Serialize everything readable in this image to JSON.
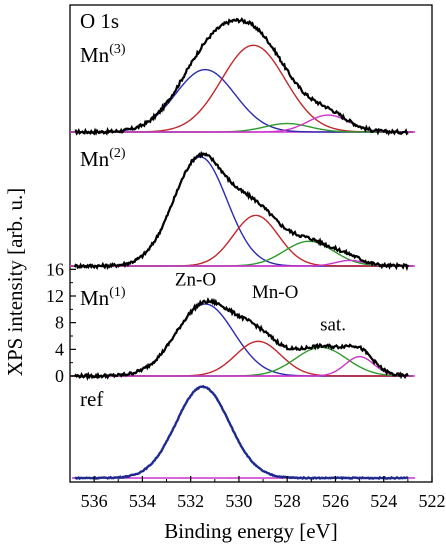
{
  "chart_data": {
    "type": "line",
    "xlabel": "Binding energy [eV]",
    "ylabel": "XPS intensity [arb. u.]",
    "xlim": [
      537,
      522
    ],
    "x_ticks": [
      536,
      534,
      532,
      530,
      528,
      526,
      524,
      522
    ],
    "grid": false,
    "element_label": "O 1s",
    "colors": {
      "data": "#000000",
      "zn_o": "#2b2bb0",
      "mn_o": "#c0282c",
      "sat_1": "#2e9a2e",
      "sat_2": "#cc33cc",
      "baseline": "#cc33cc",
      "ref": "#1f2a8f"
    },
    "panels": [
      {
        "label_main": "Mn",
        "label_sup": "(3)",
        "components": [
          {
            "center": 531.4,
            "amplitude": 0.59,
            "fwhm": 2.9,
            "color": "zn_o"
          },
          {
            "center": 529.4,
            "amplitude": 0.82,
            "fwhm": 3.1,
            "color": "mn_o"
          },
          {
            "center": 528.0,
            "amplitude": 0.08,
            "fwhm": 2.2,
            "color": "sat_1"
          },
          {
            "center": 526.3,
            "amplitude": 0.16,
            "fwhm": 2.0,
            "color": "sat_2"
          }
        ]
      },
      {
        "label_main": "Mn",
        "label_sup": "(2)",
        "components": [
          {
            "center": 531.6,
            "amplitude": 0.97,
            "fwhm": 2.6,
            "color": "zn_o"
          },
          {
            "center": 529.3,
            "amplitude": 0.45,
            "fwhm": 2.2,
            "color": "mn_o"
          },
          {
            "center": 527.1,
            "amplitude": 0.22,
            "fwhm": 2.4,
            "color": "sat_1"
          },
          {
            "center": 525.4,
            "amplitude": 0.05,
            "fwhm": 1.4,
            "color": "sat_2"
          }
        ]
      },
      {
        "label_main": "Mn",
        "label_sup": "(1)",
        "y_ticks": [
          0,
          4,
          8,
          12,
          16
        ],
        "ylim": [
          0,
          16.5
        ],
        "peak_labels": [
          {
            "text": "Zn-O",
            "x": 531.8,
            "y": 13.6
          },
          {
            "text": "Mn-O",
            "x": 528.5,
            "y": 11.7
          },
          {
            "text": "sat.",
            "x": 526.1,
            "y": 6.8
          }
        ],
        "components": [
          {
            "center": 531.4,
            "amplitude": 10.8,
            "fwhm": 2.8,
            "color": "zn_o"
          },
          {
            "center": 529.2,
            "amplitude": 5.2,
            "fwhm": 2.2,
            "color": "mn_o"
          },
          {
            "center": 526.6,
            "amplitude": 4.3,
            "fwhm": 2.5,
            "color": "sat_1"
          },
          {
            "center": 525.0,
            "amplitude": 2.9,
            "fwhm": 1.4,
            "color": "sat_2"
          }
        ]
      },
      {
        "label_main": "ref",
        "label_sup": "",
        "components": [
          {
            "center": 531.5,
            "amplitude": 1.0,
            "fwhm": 2.6,
            "color": "ref"
          }
        ]
      }
    ]
  }
}
